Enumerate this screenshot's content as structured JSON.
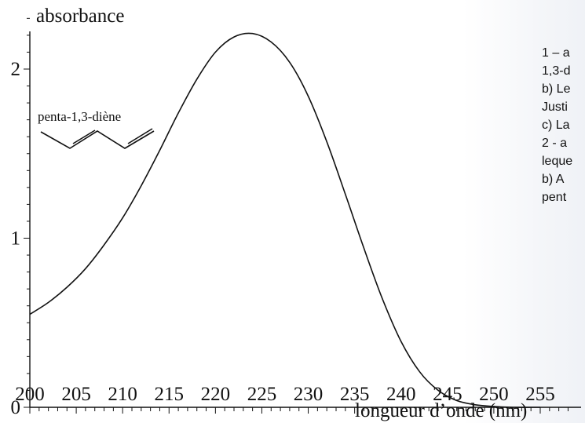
{
  "chart_data": {
    "type": "line",
    "ylabel": "absorbance",
    "xlabel": "longueur d’onde (nm)",
    "xlim": [
      200,
      258
    ],
    "ylim": [
      0,
      2.3
    ],
    "x_ticks": [
      200,
      205,
      210,
      215,
      220,
      225,
      230,
      235,
      240,
      245,
      250,
      255
    ],
    "y_ticks": [
      0,
      1,
      2
    ],
    "grid": false,
    "series": [
      {
        "x": [
          200,
          202,
          204,
          206,
          208,
          210,
          212,
          214,
          216,
          218,
          220,
          222,
          224,
          226,
          228,
          230,
          232,
          234,
          236,
          238,
          240,
          242,
          244,
          246,
          248,
          250,
          252,
          254,
          255
        ],
        "y": [
          0.55,
          0.62,
          0.71,
          0.82,
          0.96,
          1.12,
          1.31,
          1.52,
          1.74,
          1.94,
          2.1,
          2.19,
          2.21,
          2.16,
          2.04,
          1.84,
          1.57,
          1.26,
          0.94,
          0.64,
          0.39,
          0.21,
          0.1,
          0.04,
          0.015,
          0.005,
          0.0,
          0.0,
          0.0
        ]
      }
    ],
    "annotation": "penta-1,3-diène"
  },
  "side_text": [
    "1 – a",
    "1,3-d",
    "b) Le",
    "Justi",
    "c) La",
    "2 - a",
    "leque",
    "b) A",
    "pent"
  ]
}
